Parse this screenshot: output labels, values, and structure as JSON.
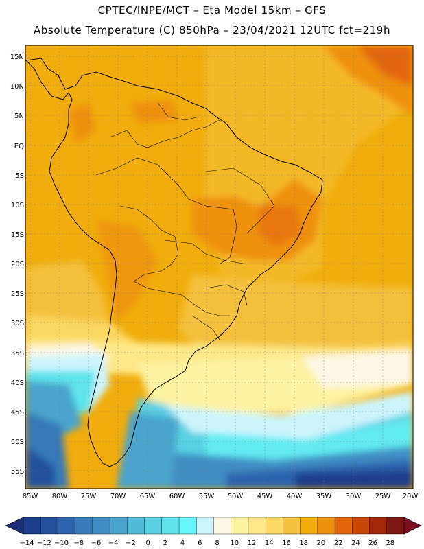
{
  "header": {
    "line1": "CPTEC/INPE/MCT –  Eta Model 15km – GFS",
    "line2": "Absolute Temperature (C) 850hPa – 23/04/2021 12UTC fct=219h"
  },
  "map": {
    "lat_labels": [
      "15N",
      "10N",
      "5N",
      "EQ",
      "5S",
      "10S",
      "15S",
      "20S",
      "25S",
      "30S",
      "35S",
      "40S",
      "45S",
      "50S",
      "55S"
    ],
    "lon_labels": [
      "85W",
      "80W",
      "75W",
      "70W",
      "65W",
      "60W",
      "55W",
      "50W",
      "45W",
      "40W",
      "35W",
      "30W",
      "25W",
      "20W"
    ]
  },
  "colorbar": {
    "labels": [
      "-14",
      "-12",
      "-10",
      "-8",
      "-6",
      "-4",
      "-2",
      "0",
      "2",
      "4",
      "6",
      "8",
      "10",
      "12",
      "14",
      "16",
      "18",
      "20",
      "22",
      "24",
      "26",
      "28"
    ],
    "colors": [
      "#1a3d8c",
      "#23519e",
      "#2b64ad",
      "#3579b8",
      "#3f8dc4",
      "#48a3cc",
      "#52b9d8",
      "#5ad0e4",
      "#5ee3ee",
      "#66f7fb",
      "#cdf5fb",
      "#fcf7e6",
      "#fdf3a2",
      "#fce889",
      "#fbd761",
      "#f5c13d",
      "#f0ad0d",
      "#ee920d",
      "#e26608",
      "#c94506",
      "#a22607",
      "#7d1713"
    ],
    "left_arrow_color": "#1e2f7a",
    "right_arrow_color": "#7a0f22"
  }
}
